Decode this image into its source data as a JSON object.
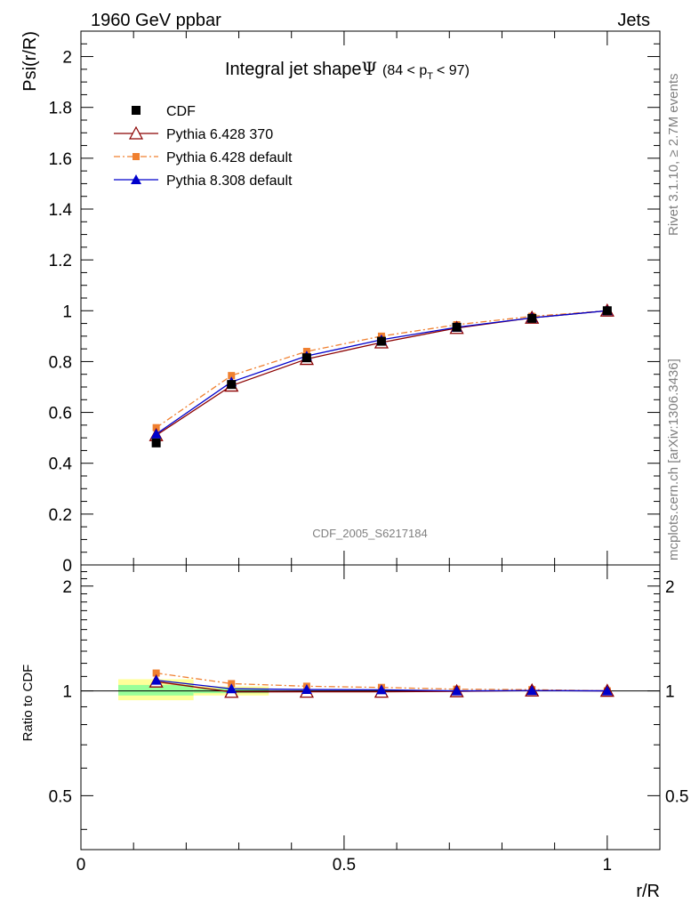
{
  "header": {
    "left": "1960 GeV ppbar",
    "right": "Jets"
  },
  "side_labels": {
    "top": "Rivet 3.1.10, ≥ 2.7M events",
    "bottom": "mcplots.cern.ch [arXiv:1306.3436]"
  },
  "chart_data": [
    {
      "type": "line",
      "title": "Integral jet shape",
      "title_symbol": "Ψ",
      "title_cut_pre": "(84 < p",
      "title_cut_sub": "T",
      "title_cut_post": "< 97)",
      "ylabel": "Psi(r/R)",
      "watermark": "CDF_2005_S6217184",
      "xlim": [
        0,
        1.1
      ],
      "ylim": [
        0,
        2.1
      ],
      "yticks": [
        0,
        0.2,
        0.4,
        0.6,
        0.8,
        1,
        1.2,
        1.4,
        1.6,
        1.8,
        2
      ],
      "ytick_labels": [
        "0",
        "0.2",
        "0.4",
        "0.6",
        "0.8",
        "1",
        "1.2",
        "1.4",
        "1.6",
        "1.8",
        "2"
      ],
      "legend_position": "top-left",
      "x": [
        0.143,
        0.286,
        0.429,
        0.571,
        0.714,
        0.857,
        1.0
      ],
      "series": [
        {
          "name": "CDF",
          "color": "#000000",
          "marker": "square",
          "values": [
            0.48,
            0.71,
            0.815,
            0.88,
            0.935,
            0.97,
            1.0
          ]
        },
        {
          "name": "Pythia 6.428 370",
          "color": "#8b0000",
          "marker": "open-triangle",
          "line": "solid",
          "values": [
            0.51,
            0.705,
            0.81,
            0.875,
            0.932,
            0.972,
            1.0
          ]
        },
        {
          "name": "Pythia 6.428 default",
          "color": "#f08030",
          "marker": "small-square",
          "line": "dashdot",
          "values": [
            0.54,
            0.745,
            0.84,
            0.9,
            0.945,
            0.978,
            1.0
          ]
        },
        {
          "name": "Pythia 8.308 default",
          "color": "#0000cc",
          "marker": "triangle",
          "line": "solid",
          "values": [
            0.515,
            0.72,
            0.822,
            0.886,
            0.935,
            0.972,
            1.0
          ]
        }
      ]
    },
    {
      "type": "line",
      "ylabel": "Ratio to CDF",
      "xlabel": "r/R",
      "xlim": [
        0,
        1.1
      ],
      "ylim": [
        0.35,
        2.3
      ],
      "yticks": [
        0.5,
        1,
        2
      ],
      "ytick_labels": [
        "0.5",
        "1",
        "2"
      ],
      "xticks": [
        0,
        0.5,
        1
      ],
      "xtick_labels": [
        "0",
        "0.5",
        "1"
      ],
      "x": [
        0.143,
        0.286,
        0.429,
        0.571,
        0.714,
        0.857,
        1.0
      ],
      "bands": [
        {
          "x0": 0.071,
          "x1": 0.214,
          "yellow": [
            0.94,
            1.08
          ],
          "green": [
            0.97,
            1.04
          ]
        },
        {
          "x0": 0.214,
          "x1": 0.357,
          "yellow": [
            0.97,
            1.03
          ],
          "green": [
            0.985,
            1.015
          ]
        }
      ],
      "series": [
        {
          "name": "Pythia 6.428 370",
          "color": "#8b0000",
          "values": [
            1.063,
            0.993,
            0.994,
            0.994,
            0.997,
            1.002,
            1.0
          ]
        },
        {
          "name": "Pythia 6.428 default",
          "color": "#f08030",
          "values": [
            1.125,
            1.049,
            1.031,
            1.023,
            1.011,
            1.008,
            1.0
          ]
        },
        {
          "name": "Pythia 8.308 default",
          "color": "#0000cc",
          "values": [
            1.073,
            1.014,
            1.009,
            1.007,
            1.0,
            1.002,
            1.0
          ]
        }
      ]
    }
  ]
}
